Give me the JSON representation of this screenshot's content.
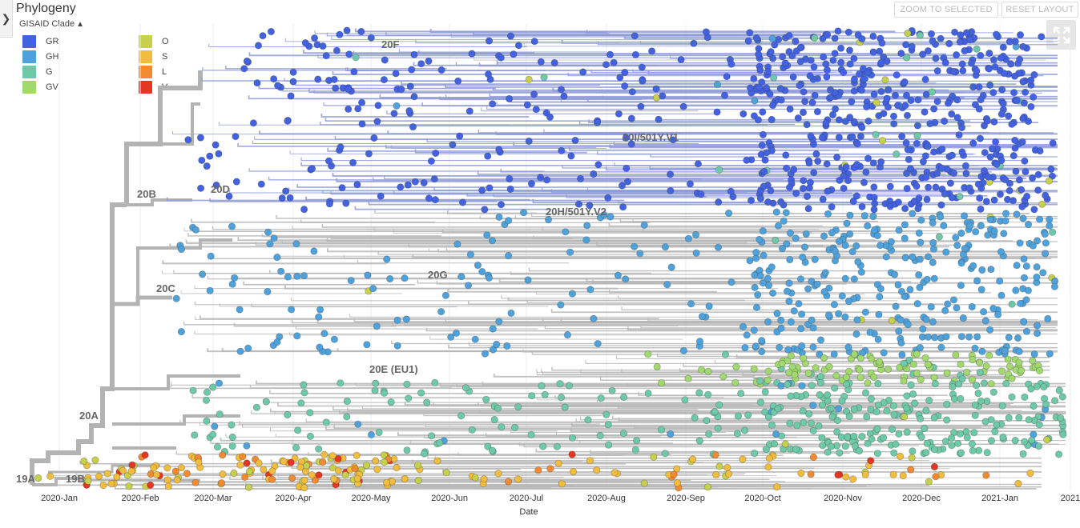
{
  "panel": {
    "title": "Phylogeny",
    "color_by": "GISAID Clade"
  },
  "toolbar": {
    "zoom_selected": "ZOOM TO SELECTED",
    "reset_layout": "RESET LAYOUT"
  },
  "legend": [
    {
      "name": "GR",
      "color": "#4262e0"
    },
    {
      "name": "GH",
      "color": "#4ea2dc"
    },
    {
      "name": "G",
      "color": "#6ec9a8"
    },
    {
      "name": "GV",
      "color": "#a1d96e"
    },
    {
      "name": "O",
      "color": "#c7d04b"
    },
    {
      "name": "S",
      "color": "#f2bd3c"
    },
    {
      "name": "L",
      "color": "#f28a31"
    },
    {
      "name": "V",
      "color": "#e53523"
    }
  ],
  "clade_labels": [
    "20F",
    "20I/501Y.V1",
    "20B",
    "20D",
    "20H/501Y.V2",
    "20C",
    "20G",
    "20E (EU1)",
    "20A",
    "19A",
    "19B"
  ],
  "axis": {
    "title": "Date",
    "ticks": [
      "2020-Jan",
      "2020-Feb",
      "2020-Mar",
      "2020-Apr",
      "2020-May",
      "2020-Jun",
      "2020-Jul",
      "2020-Aug",
      "2020-Sep",
      "2020-Oct",
      "2020-Nov",
      "2020-Dec",
      "2021-Jan",
      "2021"
    ]
  }
}
